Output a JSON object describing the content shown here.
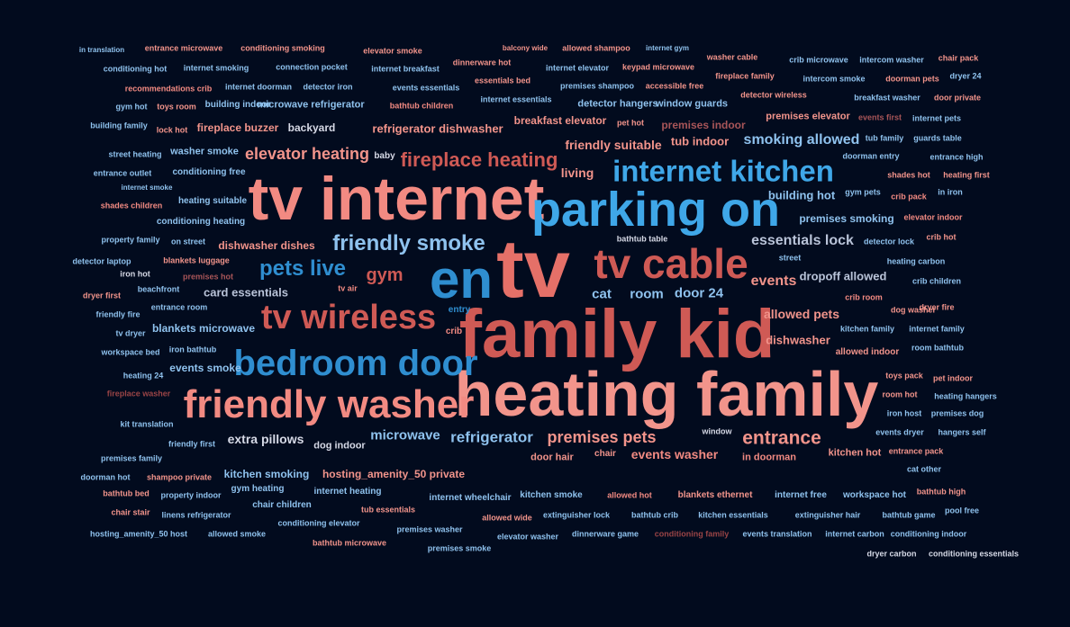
{
  "colors": {
    "background": "#020b1e",
    "palette": [
      "#f2948b",
      "#f28a82",
      "#e57068",
      "#cf5a55",
      "#5fb0e6",
      "#3fa7e8",
      "#2f8ed0",
      "#b9c3d8",
      "#d6d9e6",
      "#a85558",
      "#8fc2ee",
      "#9a4446"
    ]
  },
  "words": [
    "tv",
    "family kid",
    "heating family",
    "tv internet",
    "parking on",
    "en",
    "friendly washer",
    "bedroom door",
    "tv cable",
    "tv wireless",
    "internet kitchen",
    "fireplace heating",
    "friendly smoke",
    "elevator heating",
    "pets live",
    "gym",
    "essentials lock",
    "smoking allowed",
    "building hot",
    "premises smoking",
    "friendly suitable",
    "tub indoor",
    "living",
    "events",
    "dropoff allowed",
    "cat",
    "room",
    "door 24",
    "card essentials",
    "tv air",
    "allowed pets",
    "dishwasher",
    "entrance",
    "premises pets",
    "refrigerator",
    "microwave",
    "extra pillows",
    "dog indoor",
    "events washer",
    "door hair",
    "chair",
    "in doorman",
    "window",
    "kitchen smoking",
    "hosting_amenity_50 private",
    "blankets microwave",
    "events smoke",
    "entry",
    "crib",
    "internet heating",
    "gym heating",
    "chair children",
    "in translation",
    "entrance microwave",
    "conditioning smoking",
    "elevator smoke",
    "balcony wide",
    "allowed shampoo",
    "internet gym",
    "washer cable",
    "chair pack",
    "conditioning hot",
    "internet smoking",
    "connection pocket",
    "internet breakfast",
    "dinnerware hot",
    "internet elevator",
    "keypad microwave",
    "crib microwave",
    "intercom washer",
    "recommendations crib",
    "internet doorman",
    "detector iron",
    "events essentials",
    "essentials bed",
    "premises shampoo",
    "accessible free",
    "fireplace family",
    "intercom smoke",
    "doorman pets",
    "dryer 24",
    "gym hot",
    "toys room",
    "building indoor",
    "microwave refrigerator",
    "bathtub children",
    "internet essentials",
    "detector hangers",
    "window guards",
    "detector wireless",
    "breakfast washer",
    "door private",
    "building family",
    "lock hot",
    "fireplace buzzer",
    "backyard",
    "refrigerator dishwasher",
    "breakfast elevator",
    "pet hot",
    "premises indoor",
    "premises elevator",
    "events first",
    "internet pets",
    "tub family",
    "guards table",
    "street heating",
    "washer smoke",
    "baby",
    "doorman entry",
    "entrance high",
    "entrance outlet",
    "conditioning free",
    "shades hot",
    "heating first",
    "internet smoke",
    "heating suitable",
    "gym pets",
    "crib pack",
    "in iron",
    "shades children",
    "conditioning heating",
    "elevator indoor",
    "property family",
    "on street",
    "dishwasher dishes",
    "bathtub table",
    "detector lock",
    "crib hot",
    "detector laptop",
    "blankets luggage",
    "street",
    "heating carbon",
    "iron hot",
    "premises hot",
    "crib children",
    "beachfront",
    "dryer first",
    "crib room",
    "entrance room",
    "dog washer",
    "dryer fire",
    "friendly fire",
    "tv dryer",
    "kitchen family",
    "internet family",
    "workspace bed",
    "iron bathtub",
    "allowed indoor",
    "room bathtub",
    "heating 24",
    "toys pack",
    "pet indoor",
    "fireplace washer",
    "room hot",
    "heating hangers",
    "iron host",
    "premises dog",
    "kit translation",
    "events dryer",
    "hangers self",
    "friendly first",
    "premises family",
    "kitchen hot",
    "entrance pack",
    "doorman hot",
    "shampoo private",
    "cat other",
    "bathtub bed",
    "property indoor",
    "internet wheelchair",
    "kitchen smoke",
    "allowed hot",
    "blankets ethernet",
    "internet free",
    "workspace hot",
    "bathtub high",
    "chair stair",
    "linens refrigerator",
    "tub essentials",
    "allowed wide",
    "extinguisher lock",
    "bathtub crib",
    "kitchen essentials",
    "extinguisher hair",
    "bathtub game",
    "pool free",
    "conditioning elevator",
    "hosting_amenity_50 host",
    "allowed smoke",
    "premises washer",
    "elevator washer",
    "dinnerware game",
    "conditioning family",
    "events translation",
    "internet carbon",
    "conditioning indoor",
    "bathtub microwave",
    "premises smoke",
    "dryer carbon",
    "conditioning essentials"
  ]
}
